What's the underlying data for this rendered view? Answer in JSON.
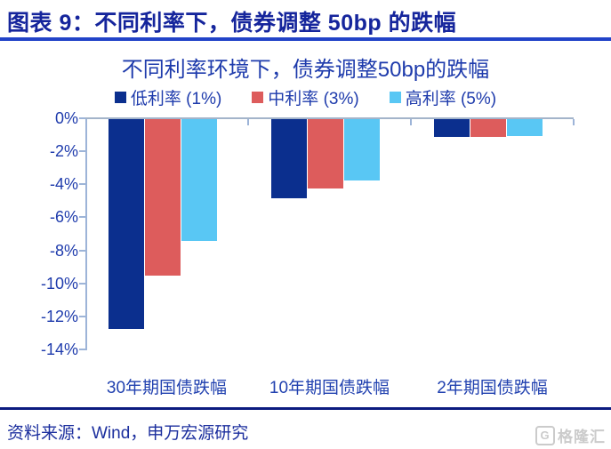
{
  "header": {
    "title": "图表 9：不同利率下，债券调整 50bp 的跌幅"
  },
  "chart_data": {
    "type": "bar",
    "title": "不同利率环境下，债券调整50bp的跌幅",
    "categories": [
      "30年期国债跌幅",
      "10年期国债跌幅",
      "2年期国债跌幅"
    ],
    "series": [
      {
        "name": "低利率 (1%)",
        "color": "#0b2f8e",
        "values": [
          -12.7,
          -4.8,
          -1.1
        ]
      },
      {
        "name": "中利率 (3%)",
        "color": "#dd5c5c",
        "values": [
          -9.5,
          -4.2,
          -1.1
        ]
      },
      {
        "name": "高利率 (5%)",
        "color": "#59c7f4",
        "values": [
          -7.4,
          -3.7,
          -1.0
        ]
      }
    ],
    "yticks": [
      "0%",
      "-2%",
      "-4%",
      "-6%",
      "-8%",
      "-10%",
      "-12%",
      "-14%"
    ],
    "ylim": [
      -14,
      0
    ],
    "grid": false,
    "legend_position": "top",
    "bar_orientation": "vertical-negative"
  },
  "footer": {
    "source": "资料来源：Wind，申万宏源研究",
    "logo_text": "格隆汇",
    "logo_icon": "gelonghui-G-icon"
  },
  "colors": {
    "header_text": "#15259c",
    "header_rule": "#2243c8",
    "chart_text": "#1e3bac",
    "axis_line": "#9db4d8",
    "footer_rule": "#0c1c80",
    "watermark": "#cbcbcb"
  }
}
